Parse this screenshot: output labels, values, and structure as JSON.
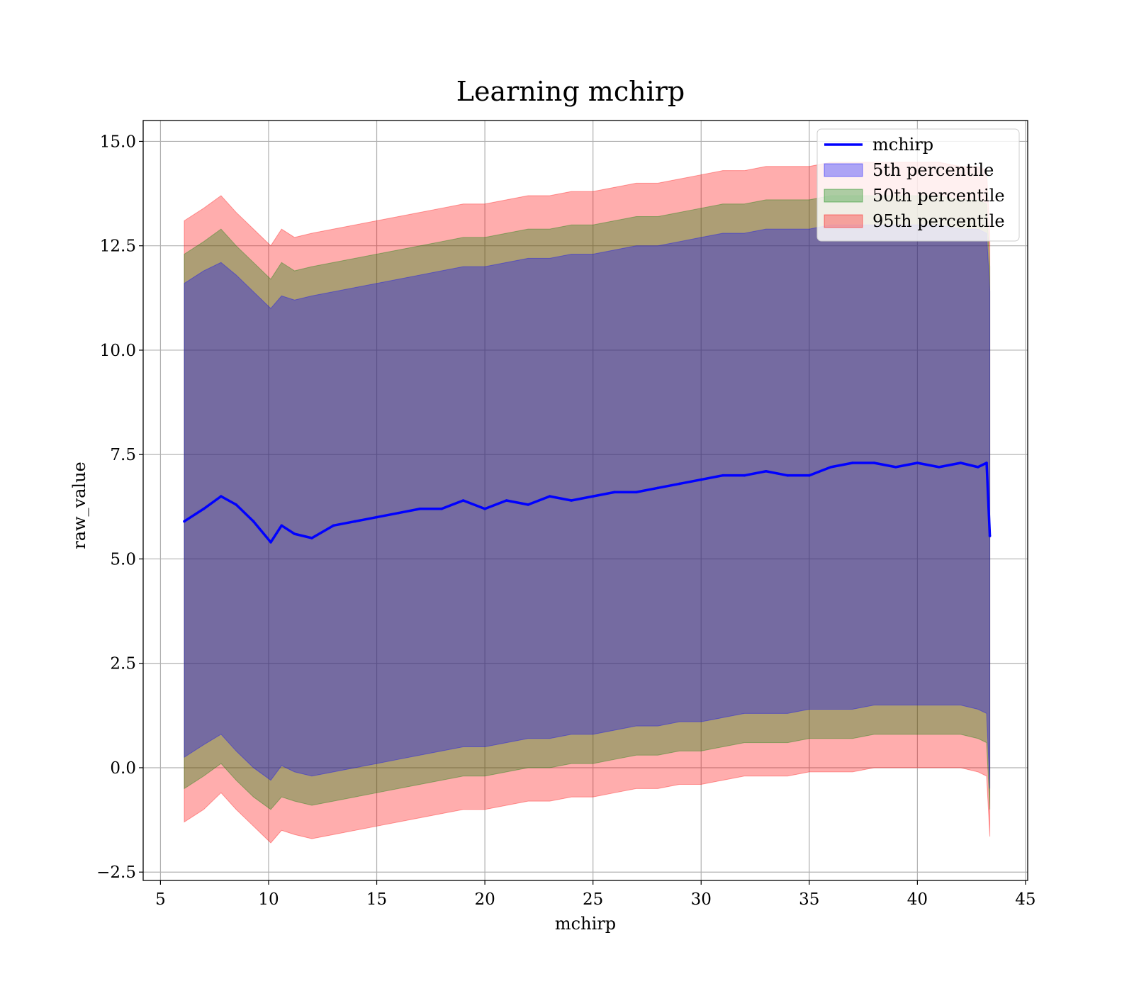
{
  "chart_data": {
    "type": "area",
    "title": "Learning mchirp",
    "xlabel": "mchirp",
    "ylabel": "raw_value",
    "xlim": [
      4.2,
      45.1
    ],
    "ylim": [
      -2.7,
      15.5
    ],
    "xticks": [
      5,
      10,
      15,
      20,
      25,
      30,
      35,
      40,
      45
    ],
    "xtick_labels": [
      "5",
      "10",
      "15",
      "20",
      "25",
      "30",
      "35",
      "40",
      "45"
    ],
    "yticks": [
      -2.5,
      0.0,
      2.5,
      5.0,
      7.5,
      10.0,
      12.5,
      15.0
    ],
    "ytick_labels": [
      "−2.5",
      "0.0",
      "2.5",
      "5.0",
      "7.5",
      "10.0",
      "12.5",
      "15.0"
    ],
    "grid": true,
    "legend_position": "top-right",
    "legend": [
      {
        "label": "mchirp",
        "kind": "line",
        "color": "#0000ff"
      },
      {
        "label": "5th percentile",
        "kind": "patch",
        "color": "#0000ff"
      },
      {
        "label": "50th percentile",
        "kind": "patch",
        "color": "#008000"
      },
      {
        "label": "95th percentile",
        "kind": "patch",
        "color": "#ff0000"
      }
    ],
    "x": [
      6.1,
      7.0,
      7.8,
      8.5,
      9.3,
      10.1,
      10.6,
      11.2,
      12.0,
      13.0,
      14.0,
      15.0,
      16.0,
      17.0,
      18.0,
      19.0,
      20.0,
      21.0,
      22.0,
      23.0,
      24.0,
      25.0,
      26.0,
      27.0,
      28.0,
      29.0,
      30.0,
      31.0,
      32.0,
      33.0,
      34.0,
      35.0,
      36.0,
      37.0,
      38.0,
      39.0,
      40.0,
      41.0,
      42.0,
      42.8,
      43.2,
      43.35
    ],
    "series": [
      {
        "name": "mchirp",
        "type": "line",
        "color": "#0000ff",
        "values": [
          5.9,
          6.2,
          6.5,
          6.3,
          5.9,
          5.4,
          5.8,
          5.6,
          5.5,
          5.8,
          5.9,
          6.0,
          6.1,
          6.2,
          6.2,
          6.4,
          6.2,
          6.4,
          6.3,
          6.5,
          6.4,
          6.5,
          6.6,
          6.6,
          6.7,
          6.8,
          6.9,
          7.0,
          7.0,
          7.1,
          7.0,
          7.0,
          7.2,
          7.3,
          7.3,
          7.2,
          7.3,
          7.2,
          7.3,
          7.2,
          7.3,
          5.55
        ]
      },
      {
        "name": "5th percentile",
        "type": "band",
        "color": "#0000ff",
        "upper": [
          11.6,
          11.9,
          12.1,
          11.8,
          11.4,
          11.0,
          11.3,
          11.2,
          11.3,
          11.4,
          11.5,
          11.6,
          11.7,
          11.8,
          11.9,
          12.0,
          12.0,
          12.1,
          12.2,
          12.2,
          12.3,
          12.3,
          12.4,
          12.5,
          12.5,
          12.6,
          12.7,
          12.8,
          12.8,
          12.9,
          12.9,
          12.9,
          13.0,
          13.0,
          13.0,
          13.0,
          13.0,
          13.0,
          12.9,
          12.9,
          12.8,
          11.4
        ],
        "lower": [
          0.25,
          0.55,
          0.8,
          0.4,
          0.0,
          -0.3,
          0.05,
          -0.1,
          -0.2,
          -0.1,
          0.0,
          0.1,
          0.2,
          0.3,
          0.4,
          0.5,
          0.5,
          0.6,
          0.7,
          0.7,
          0.8,
          0.8,
          0.9,
          1.0,
          1.0,
          1.1,
          1.1,
          1.2,
          1.3,
          1.3,
          1.3,
          1.4,
          1.4,
          1.4,
          1.5,
          1.5,
          1.5,
          1.5,
          1.5,
          1.4,
          1.3,
          -0.5
        ]
      },
      {
        "name": "50th percentile",
        "type": "band",
        "color": "#008000",
        "upper": [
          12.3,
          12.6,
          12.9,
          12.5,
          12.1,
          11.7,
          12.1,
          11.9,
          12.0,
          12.1,
          12.2,
          12.3,
          12.4,
          12.5,
          12.6,
          12.7,
          12.7,
          12.8,
          12.9,
          12.9,
          13.0,
          13.0,
          13.1,
          13.2,
          13.2,
          13.3,
          13.4,
          13.5,
          13.5,
          13.6,
          13.6,
          13.6,
          13.7,
          13.7,
          13.7,
          13.7,
          13.7,
          13.7,
          13.6,
          13.6,
          13.5,
          12.0
        ],
        "lower": [
          -0.5,
          -0.2,
          0.1,
          -0.3,
          -0.7,
          -1.0,
          -0.7,
          -0.8,
          -0.9,
          -0.8,
          -0.7,
          -0.6,
          -0.5,
          -0.4,
          -0.3,
          -0.2,
          -0.2,
          -0.1,
          0.0,
          0.0,
          0.1,
          0.1,
          0.2,
          0.3,
          0.3,
          0.4,
          0.4,
          0.5,
          0.6,
          0.6,
          0.6,
          0.7,
          0.7,
          0.7,
          0.8,
          0.8,
          0.8,
          0.8,
          0.8,
          0.7,
          0.6,
          -1.0
        ]
      },
      {
        "name": "95th percentile",
        "type": "band",
        "color": "#ff0000",
        "upper": [
          13.1,
          13.4,
          13.7,
          13.3,
          12.9,
          12.5,
          12.9,
          12.7,
          12.8,
          12.9,
          13.0,
          13.1,
          13.2,
          13.3,
          13.4,
          13.5,
          13.5,
          13.6,
          13.7,
          13.7,
          13.8,
          13.8,
          13.9,
          14.0,
          14.0,
          14.1,
          14.2,
          14.3,
          14.3,
          14.4,
          14.4,
          14.4,
          14.5,
          14.5,
          14.5,
          14.5,
          14.5,
          14.5,
          14.4,
          14.4,
          14.3,
          12.8
        ],
        "lower": [
          -1.3,
          -1.0,
          -0.6,
          -1.0,
          -1.4,
          -1.8,
          -1.5,
          -1.6,
          -1.7,
          -1.6,
          -1.5,
          -1.4,
          -1.3,
          -1.2,
          -1.1,
          -1.0,
          -1.0,
          -0.9,
          -0.8,
          -0.8,
          -0.7,
          -0.7,
          -0.6,
          -0.5,
          -0.5,
          -0.4,
          -0.4,
          -0.3,
          -0.2,
          -0.2,
          -0.2,
          -0.1,
          -0.1,
          -0.1,
          0.0,
          0.0,
          0.0,
          0.0,
          0.0,
          -0.1,
          -0.2,
          -1.65
        ]
      }
    ]
  }
}
